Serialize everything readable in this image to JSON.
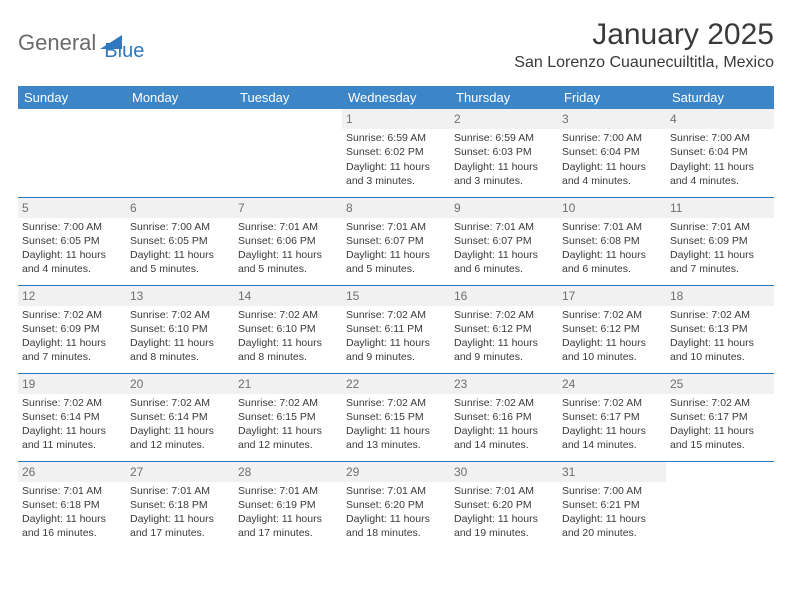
{
  "logo": {
    "general": "General",
    "blue": "Blue"
  },
  "title": "January 2025",
  "location": "San Lorenzo Cuaunecuiltitla, Mexico",
  "colors": {
    "header_bg": "#3c85c6",
    "border": "#2f78bf",
    "text": "#3a3a3a",
    "muted": "#707070",
    "daynum_bg": "#f1f1f1",
    "logo_accent": "#2f78bf"
  },
  "weekdays": [
    "Sunday",
    "Monday",
    "Tuesday",
    "Wednesday",
    "Thursday",
    "Friday",
    "Saturday"
  ],
  "weeks": [
    [
      {
        "empty": true
      },
      {
        "empty": true
      },
      {
        "empty": true
      },
      {
        "day": "1",
        "sunrise": "Sunrise: 6:59 AM",
        "sunset": "Sunset: 6:02 PM",
        "daylight1": "Daylight: 11 hours",
        "daylight2": "and 3 minutes."
      },
      {
        "day": "2",
        "sunrise": "Sunrise: 6:59 AM",
        "sunset": "Sunset: 6:03 PM",
        "daylight1": "Daylight: 11 hours",
        "daylight2": "and 3 minutes."
      },
      {
        "day": "3",
        "sunrise": "Sunrise: 7:00 AM",
        "sunset": "Sunset: 6:04 PM",
        "daylight1": "Daylight: 11 hours",
        "daylight2": "and 4 minutes."
      },
      {
        "day": "4",
        "sunrise": "Sunrise: 7:00 AM",
        "sunset": "Sunset: 6:04 PM",
        "daylight1": "Daylight: 11 hours",
        "daylight2": "and 4 minutes."
      }
    ],
    [
      {
        "day": "5",
        "sunrise": "Sunrise: 7:00 AM",
        "sunset": "Sunset: 6:05 PM",
        "daylight1": "Daylight: 11 hours",
        "daylight2": "and 4 minutes."
      },
      {
        "day": "6",
        "sunrise": "Sunrise: 7:00 AM",
        "sunset": "Sunset: 6:05 PM",
        "daylight1": "Daylight: 11 hours",
        "daylight2": "and 5 minutes."
      },
      {
        "day": "7",
        "sunrise": "Sunrise: 7:01 AM",
        "sunset": "Sunset: 6:06 PM",
        "daylight1": "Daylight: 11 hours",
        "daylight2": "and 5 minutes."
      },
      {
        "day": "8",
        "sunrise": "Sunrise: 7:01 AM",
        "sunset": "Sunset: 6:07 PM",
        "daylight1": "Daylight: 11 hours",
        "daylight2": "and 5 minutes."
      },
      {
        "day": "9",
        "sunrise": "Sunrise: 7:01 AM",
        "sunset": "Sunset: 6:07 PM",
        "daylight1": "Daylight: 11 hours",
        "daylight2": "and 6 minutes."
      },
      {
        "day": "10",
        "sunrise": "Sunrise: 7:01 AM",
        "sunset": "Sunset: 6:08 PM",
        "daylight1": "Daylight: 11 hours",
        "daylight2": "and 6 minutes."
      },
      {
        "day": "11",
        "sunrise": "Sunrise: 7:01 AM",
        "sunset": "Sunset: 6:09 PM",
        "daylight1": "Daylight: 11 hours",
        "daylight2": "and 7 minutes."
      }
    ],
    [
      {
        "day": "12",
        "sunrise": "Sunrise: 7:02 AM",
        "sunset": "Sunset: 6:09 PM",
        "daylight1": "Daylight: 11 hours",
        "daylight2": "and 7 minutes."
      },
      {
        "day": "13",
        "sunrise": "Sunrise: 7:02 AM",
        "sunset": "Sunset: 6:10 PM",
        "daylight1": "Daylight: 11 hours",
        "daylight2": "and 8 minutes."
      },
      {
        "day": "14",
        "sunrise": "Sunrise: 7:02 AM",
        "sunset": "Sunset: 6:10 PM",
        "daylight1": "Daylight: 11 hours",
        "daylight2": "and 8 minutes."
      },
      {
        "day": "15",
        "sunrise": "Sunrise: 7:02 AM",
        "sunset": "Sunset: 6:11 PM",
        "daylight1": "Daylight: 11 hours",
        "daylight2": "and 9 minutes."
      },
      {
        "day": "16",
        "sunrise": "Sunrise: 7:02 AM",
        "sunset": "Sunset: 6:12 PM",
        "daylight1": "Daylight: 11 hours",
        "daylight2": "and 9 minutes."
      },
      {
        "day": "17",
        "sunrise": "Sunrise: 7:02 AM",
        "sunset": "Sunset: 6:12 PM",
        "daylight1": "Daylight: 11 hours",
        "daylight2": "and 10 minutes."
      },
      {
        "day": "18",
        "sunrise": "Sunrise: 7:02 AM",
        "sunset": "Sunset: 6:13 PM",
        "daylight1": "Daylight: 11 hours",
        "daylight2": "and 10 minutes."
      }
    ],
    [
      {
        "day": "19",
        "sunrise": "Sunrise: 7:02 AM",
        "sunset": "Sunset: 6:14 PM",
        "daylight1": "Daylight: 11 hours",
        "daylight2": "and 11 minutes."
      },
      {
        "day": "20",
        "sunrise": "Sunrise: 7:02 AM",
        "sunset": "Sunset: 6:14 PM",
        "daylight1": "Daylight: 11 hours",
        "daylight2": "and 12 minutes."
      },
      {
        "day": "21",
        "sunrise": "Sunrise: 7:02 AM",
        "sunset": "Sunset: 6:15 PM",
        "daylight1": "Daylight: 11 hours",
        "daylight2": "and 12 minutes."
      },
      {
        "day": "22",
        "sunrise": "Sunrise: 7:02 AM",
        "sunset": "Sunset: 6:15 PM",
        "daylight1": "Daylight: 11 hours",
        "daylight2": "and 13 minutes."
      },
      {
        "day": "23",
        "sunrise": "Sunrise: 7:02 AM",
        "sunset": "Sunset: 6:16 PM",
        "daylight1": "Daylight: 11 hours",
        "daylight2": "and 14 minutes."
      },
      {
        "day": "24",
        "sunrise": "Sunrise: 7:02 AM",
        "sunset": "Sunset: 6:17 PM",
        "daylight1": "Daylight: 11 hours",
        "daylight2": "and 14 minutes."
      },
      {
        "day": "25",
        "sunrise": "Sunrise: 7:02 AM",
        "sunset": "Sunset: 6:17 PM",
        "daylight1": "Daylight: 11 hours",
        "daylight2": "and 15 minutes."
      }
    ],
    [
      {
        "day": "26",
        "sunrise": "Sunrise: 7:01 AM",
        "sunset": "Sunset: 6:18 PM",
        "daylight1": "Daylight: 11 hours",
        "daylight2": "and 16 minutes."
      },
      {
        "day": "27",
        "sunrise": "Sunrise: 7:01 AM",
        "sunset": "Sunset: 6:18 PM",
        "daylight1": "Daylight: 11 hours",
        "daylight2": "and 17 minutes."
      },
      {
        "day": "28",
        "sunrise": "Sunrise: 7:01 AM",
        "sunset": "Sunset: 6:19 PM",
        "daylight1": "Daylight: 11 hours",
        "daylight2": "and 17 minutes."
      },
      {
        "day": "29",
        "sunrise": "Sunrise: 7:01 AM",
        "sunset": "Sunset: 6:20 PM",
        "daylight1": "Daylight: 11 hours",
        "daylight2": "and 18 minutes."
      },
      {
        "day": "30",
        "sunrise": "Sunrise: 7:01 AM",
        "sunset": "Sunset: 6:20 PM",
        "daylight1": "Daylight: 11 hours",
        "daylight2": "and 19 minutes."
      },
      {
        "day": "31",
        "sunrise": "Sunrise: 7:00 AM",
        "sunset": "Sunset: 6:21 PM",
        "daylight1": "Daylight: 11 hours",
        "daylight2": "and 20 minutes."
      },
      {
        "empty": true
      }
    ]
  ]
}
